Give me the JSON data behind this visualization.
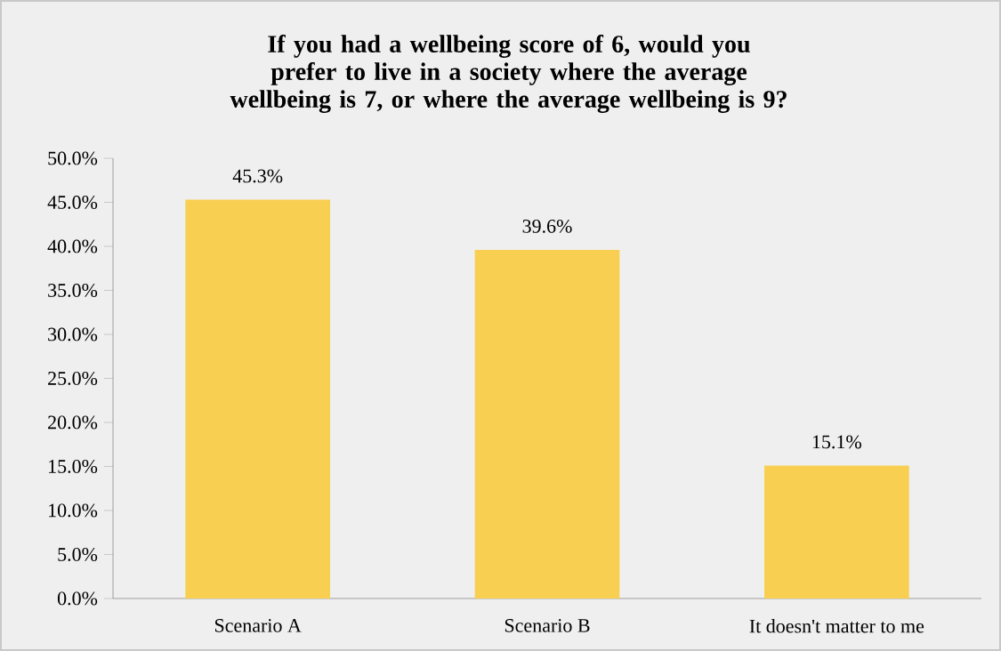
{
  "chart_data": {
    "type": "bar",
    "title": "If you had a wellbeing score of 6, would you prefer to live in a society where the average wellbeing is 7, or where the average wellbeing is 9?",
    "categories": [
      "Scenario A",
      "Scenario B",
      "It doesn't matter to me"
    ],
    "values": [
      45.3,
      39.6,
      15.1
    ],
    "value_labels": [
      "45.3%",
      "39.6%",
      "15.1%"
    ],
    "color": "#f9cf52",
    "ylim": [
      0,
      50
    ],
    "yticks": [
      {
        "value": 0,
        "label": "0.0%"
      },
      {
        "value": 5,
        "label": "5.0%"
      },
      {
        "value": 10,
        "label": "10.0%"
      },
      {
        "value": 15,
        "label": "15.0%"
      },
      {
        "value": 20,
        "label": "20.0%"
      },
      {
        "value": 25,
        "label": "25.0%"
      },
      {
        "value": 30,
        "label": "30.0%"
      },
      {
        "value": 35,
        "label": "35.0%"
      },
      {
        "value": 40,
        "label": "40.0%"
      },
      {
        "value": 45,
        "label": "45.0%"
      },
      {
        "value": 50,
        "label": "50.0%"
      }
    ],
    "grid": false
  }
}
